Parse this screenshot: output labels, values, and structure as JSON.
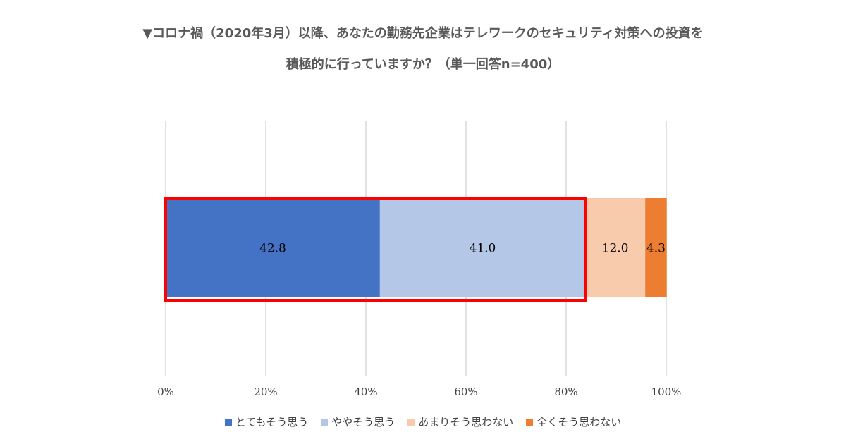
{
  "chart_data": {
    "type": "bar",
    "orientation": "horizontal-stacked-100",
    "title": "▼コロナ禍（2020年3月）以降、あなたの勤務先企業はテレワークのセキュリティ対策への投資を",
    "subtitle": "積極的に行っていますか？（単一回答n=400）",
    "xlabel": "",
    "ylabel": "",
    "xlim": [
      0,
      100
    ],
    "x_ticks": [
      "0%",
      "20%",
      "40%",
      "60%",
      "80%",
      "100%"
    ],
    "grid": true,
    "legend_position": "bottom",
    "highlight": {
      "series_range": [
        0,
        1
      ],
      "color": "#ff0000"
    },
    "series": [
      {
        "name": "とてもそう思う",
        "values": [
          42.8
        ],
        "label": "42.8",
        "color": "#4472c4"
      },
      {
        "name": "ややそう思う",
        "values": [
          41.0
        ],
        "label": "41.0",
        "color": "#b4c7e7"
      },
      {
        "name": "あまりそう思わない",
        "values": [
          12.0
        ],
        "label": "12.0",
        "color": "#f8cbad"
      },
      {
        "name": "全くそう思わない",
        "values": [
          4.3
        ],
        "label": "4.3",
        "color": "#ed7d31"
      }
    ]
  }
}
